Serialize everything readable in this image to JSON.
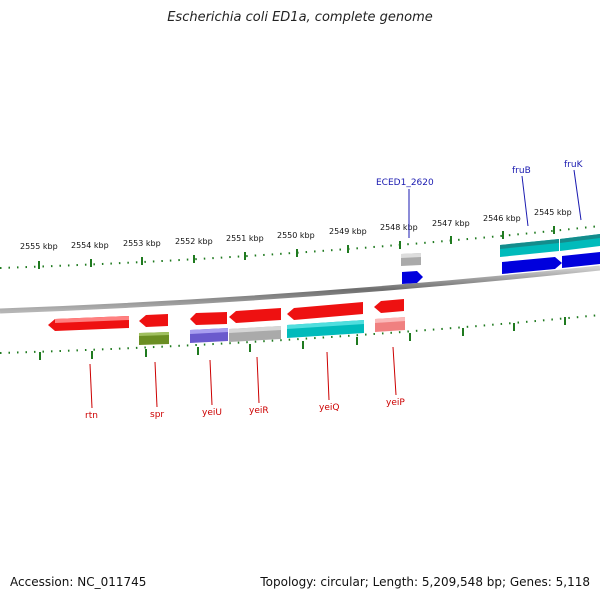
{
  "title": "Escherichia coli ED1a, complete genome",
  "accession": "Accession: NC_011745",
  "summary": "Topology: circular; Length: 5,209,548 bp; Genes: 5,118",
  "colors": {
    "backbone": "#8a8a8a",
    "ticks": "#1f7a1f",
    "label_top": "#1a1ab0",
    "label_bottom": "#cc0000"
  },
  "scale": {
    "tick_labels": [
      "2555 kbp",
      "2554 kbp",
      "2553 kbp",
      "2552 kbp",
      "2551 kbp",
      "2550 kbp",
      "2549 kbp",
      "2548 kbp",
      "2547 kbp",
      "2546 kbp",
      "2545 kbp"
    ]
  },
  "genes_top": [
    {
      "name": "ECED1_2620",
      "color": "#aaaaaa"
    },
    {
      "name": "ECED1_2620_cds",
      "color": "#0000dd"
    },
    {
      "name": "fruB",
      "color": "#00bbbb"
    },
    {
      "name": "fruB_cds",
      "color": "#0000dd"
    },
    {
      "name": "fruK",
      "color": "#00bbbb"
    },
    {
      "name": "fruK_cds",
      "color": "#0000dd"
    }
  ],
  "gene_labels_top": [
    "ECED1_2620",
    "fruB",
    "fruK"
  ],
  "genes_bottom": [
    {
      "name": "rtn",
      "color": "#ee1111"
    },
    {
      "name": "spr",
      "color": "#ee1111"
    },
    {
      "name": "spr_cds",
      "color": "#6b8e23"
    },
    {
      "name": "yeiU",
      "color": "#ee1111"
    },
    {
      "name": "yeiU_cds",
      "color": "#6a5acd"
    },
    {
      "name": "yeiR",
      "color": "#ee1111"
    },
    {
      "name": "yeiR_cds",
      "color": "#aaaaaa"
    },
    {
      "name": "yeiQ",
      "color": "#ee1111"
    },
    {
      "name": "yeiQ_cds",
      "color": "#00bbbb"
    },
    {
      "name": "yeiP",
      "color": "#ee1111"
    },
    {
      "name": "yeiP_cds",
      "color": "#f08080"
    }
  ],
  "gene_labels_bottom": [
    "rtn",
    "spr",
    "yeiU",
    "yeiR",
    "yeiQ",
    "yeiP"
  ]
}
